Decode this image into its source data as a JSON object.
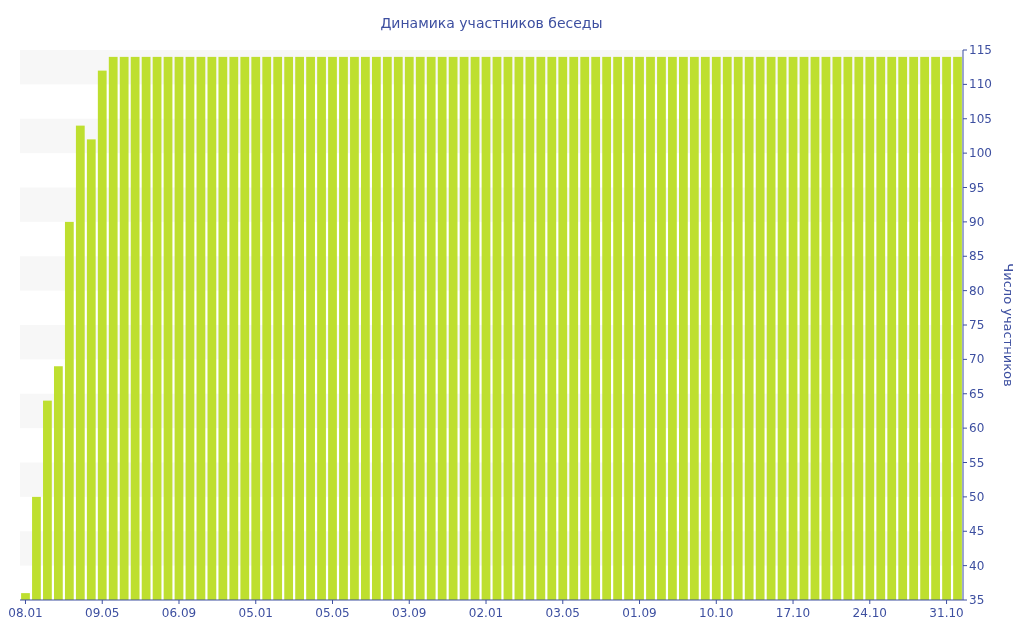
{
  "chart_data": {
    "type": "bar",
    "title": "Динамика участников беседы",
    "ylabel": "Число участников",
    "categories": [
      "08.01",
      null,
      null,
      null,
      null,
      null,
      null,
      "09.05",
      null,
      null,
      null,
      null,
      null,
      null,
      "06.09",
      null,
      null,
      null,
      null,
      null,
      null,
      "05.01",
      null,
      null,
      null,
      null,
      null,
      null,
      "05.05",
      null,
      null,
      null,
      null,
      null,
      null,
      "03.09",
      null,
      null,
      null,
      null,
      null,
      null,
      "02.01",
      null,
      null,
      null,
      null,
      null,
      null,
      "03.05",
      null,
      null,
      null,
      null,
      null,
      null,
      "01.09",
      null,
      null,
      null,
      null,
      null,
      null,
      "10.10",
      null,
      null,
      null,
      null,
      null,
      null,
      "17.10",
      null,
      null,
      null,
      null,
      null,
      null,
      "24.10",
      null,
      null,
      null,
      null,
      null,
      null,
      "31.10",
      null
    ],
    "values": [
      36,
      50,
      64,
      69,
      90,
      104,
      102,
      112,
      114,
      114,
      114,
      114,
      114,
      114,
      114,
      114,
      114,
      114,
      114,
      114,
      114,
      114,
      114,
      114,
      114,
      114,
      114,
      114,
      114,
      114,
      114,
      114,
      114,
      114,
      114,
      114,
      114,
      114,
      114,
      114,
      114,
      114,
      114,
      114,
      114,
      114,
      114,
      114,
      114,
      114,
      114,
      114,
      114,
      114,
      114,
      114,
      114,
      114,
      114,
      114,
      114,
      114,
      114,
      114,
      114,
      114,
      114,
      114,
      114,
      114,
      114,
      114,
      114,
      114,
      114,
      114,
      114,
      114,
      114,
      114,
      114,
      114,
      114,
      114,
      114,
      114
    ],
    "color": "#bedf2f",
    "ylim": [
      35,
      115
    ],
    "yticks": [
      35,
      40,
      45,
      50,
      55,
      60,
      65,
      70,
      75,
      80,
      85,
      90,
      95,
      100,
      105,
      110,
      115
    ],
    "bands": [
      {
        "axis": "y",
        "from": 110,
        "to": 115,
        "color": "#f7f7f7"
      },
      {
        "axis": "y",
        "from": 100,
        "to": 105,
        "color": "#f7f7f7"
      },
      {
        "axis": "y",
        "from": 90,
        "to": 95,
        "color": "#f7f7f7"
      },
      {
        "axis": "y",
        "from": 80,
        "to": 85,
        "color": "#f7f7f7"
      },
      {
        "axis": "y",
        "from": 70,
        "to": 75,
        "color": "#f7f7f7"
      },
      {
        "axis": "y",
        "from": 60,
        "to": 65,
        "color": "#f7f7f7"
      },
      {
        "axis": "y",
        "from": 50,
        "to": 55,
        "color": "#f7f7f7"
      },
      {
        "axis": "y",
        "from": 40,
        "to": 45,
        "color": "#f7f7f7"
      }
    ]
  }
}
